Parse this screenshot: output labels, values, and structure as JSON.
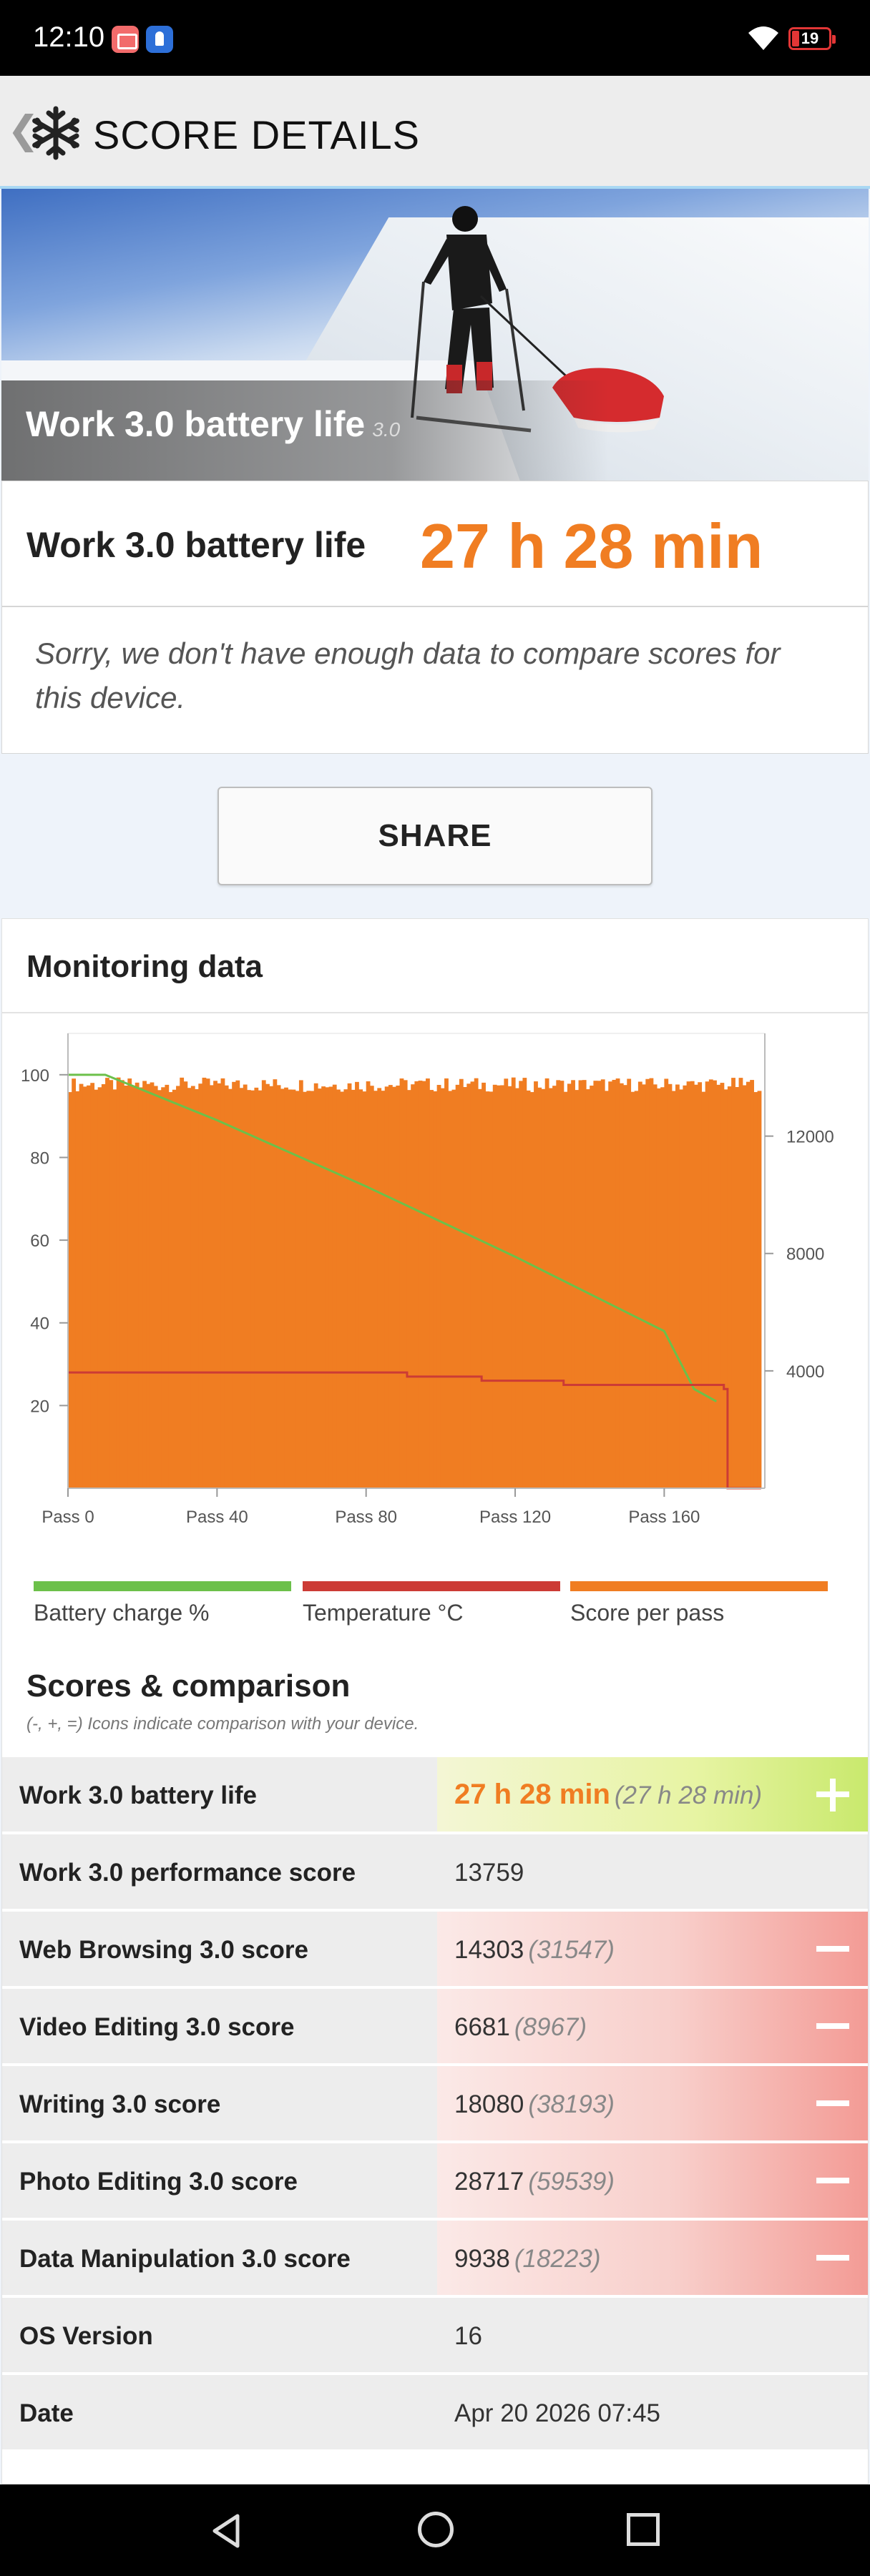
{
  "status_bar": {
    "time": "12:10",
    "battery": "19"
  },
  "app_bar": {
    "title": "SCORE DETAILS",
    "back_glyph": "❮",
    "icon": "snowflake-icon"
  },
  "hero": {
    "title": "Work 3.0 battery life",
    "version": "3.0"
  },
  "result": {
    "label": "Work 3.0 battery life",
    "value": "27 h 28 min"
  },
  "compare_note": "Sorry, we don't have enough data to compare scores for this device.",
  "share_label": "SHARE",
  "monitoring": {
    "title": "Monitoring data",
    "legend": [
      {
        "label": "Battery charge %",
        "color": "#6cc04a"
      },
      {
        "label": "Temperature °C",
        "color": "#cc3b35"
      },
      {
        "label": "Score per pass",
        "color": "#f07d22"
      }
    ]
  },
  "chart_data": {
    "type": "area",
    "x_tick_labels": [
      "Pass 0",
      "Pass 40",
      "Pass 80",
      "Pass 120",
      "Pass 160"
    ],
    "y_left_ticks": [
      20,
      40,
      60,
      80,
      100
    ],
    "y_right_ticks": [
      4000,
      8000,
      12000
    ],
    "xlim": [
      0,
      187
    ],
    "ylim_left": [
      0,
      110
    ],
    "ylim_right": [
      0,
      15500
    ],
    "grid": false,
    "legend_position": "bottom",
    "series": [
      {
        "name": "Score per pass",
        "axis": "right",
        "color": "#f07d22",
        "x_end": 186,
        "level": 13700,
        "values_note": "nearly constant ~13500-14100 for passes 0-185, then 0"
      },
      {
        "name": "Battery charge %",
        "axis": "left",
        "color": "#6cc04a",
        "x": [
          0,
          10,
          40,
          80,
          120,
          160,
          168,
          174
        ],
        "values": [
          100,
          100,
          89,
          73,
          56,
          38,
          24,
          21
        ]
      },
      {
        "name": "Temperature °C",
        "axis": "left",
        "color": "#cc3b35",
        "x": [
          0,
          40,
          80,
          91,
          111,
          131,
          133,
          135,
          174,
          176,
          177
        ],
        "values": [
          28,
          28,
          28,
          27,
          26,
          26,
          25,
          25,
          25,
          24,
          0
        ]
      }
    ]
  },
  "scores": {
    "title": "Scores & comparison",
    "subtitle": "(-, +, =) Icons indicate comparison with your device.",
    "rows": [
      {
        "name": "Work 3.0 battery life",
        "value": "27 h 28 min",
        "compare": "(27 h 28 min)",
        "indicator": "plus"
      },
      {
        "name": "Work 3.0 performance score",
        "value": "13759",
        "compare": "",
        "indicator": "none"
      },
      {
        "name": "Web Browsing 3.0 score",
        "value": "14303",
        "compare": "(31547)",
        "indicator": "minus"
      },
      {
        "name": "Video Editing 3.0 score",
        "value": "6681",
        "compare": "(8967)",
        "indicator": "minus"
      },
      {
        "name": "Writing 3.0 score",
        "value": "18080",
        "compare": "(38193)",
        "indicator": "minus"
      },
      {
        "name": "Photo Editing 3.0 score",
        "value": "28717",
        "compare": "(59539)",
        "indicator": "minus"
      },
      {
        "name": "Data Manipulation 3.0 score",
        "value": "9938",
        "compare": "(18223)",
        "indicator": "minus"
      },
      {
        "name": "OS Version",
        "value": "16",
        "compare": "",
        "indicator": "none"
      },
      {
        "name": "Date",
        "value": "Apr 20 2026 07:45",
        "compare": "",
        "indicator": "none"
      }
    ]
  }
}
